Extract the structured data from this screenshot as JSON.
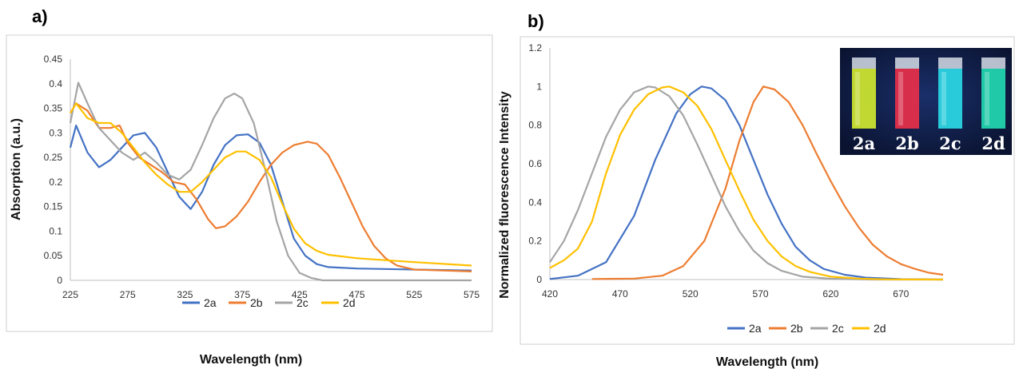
{
  "chart_data": [
    {
      "panel": "a)",
      "type": "line",
      "title": "",
      "xlabel": "Wavelength (nm)",
      "ylabel": "Absorption (a.u.)",
      "xlim": [
        225,
        575
      ],
      "ylim": [
        0,
        0.45
      ],
      "xticks": [
        225,
        275,
        325,
        375,
        425,
        475,
        525,
        575
      ],
      "yticks": [
        0,
        0.05,
        0.1,
        0.15,
        0.2,
        0.25,
        0.3,
        0.35,
        0.4,
        0.45
      ],
      "ytick_labels": [
        "0",
        "0.05",
        "0.1",
        "0.15",
        "0.2",
        "0.25",
        "0.3",
        "0.35",
        "0.4",
        "0.45"
      ],
      "grid": false,
      "legend": "bottom-center",
      "series": [
        {
          "name": "2a",
          "color": "#4472C4",
          "points": [
            [
              225,
              0.27
            ],
            [
              230,
              0.315
            ],
            [
              240,
              0.26
            ],
            [
              250,
              0.23
            ],
            [
              260,
              0.245
            ],
            [
              270,
              0.27
            ],
            [
              280,
              0.295
            ],
            [
              290,
              0.3
            ],
            [
              300,
              0.27
            ],
            [
              310,
              0.22
            ],
            [
              320,
              0.17
            ],
            [
              330,
              0.145
            ],
            [
              340,
              0.18
            ],
            [
              350,
              0.235
            ],
            [
              360,
              0.275
            ],
            [
              370,
              0.295
            ],
            [
              380,
              0.297
            ],
            [
              390,
              0.28
            ],
            [
              400,
              0.235
            ],
            [
              410,
              0.16
            ],
            [
              420,
              0.085
            ],
            [
              430,
              0.05
            ],
            [
              440,
              0.033
            ],
            [
              450,
              0.027
            ],
            [
              475,
              0.024
            ],
            [
              525,
              0.022
            ],
            [
              575,
              0.02
            ]
          ]
        },
        {
          "name": "2b",
          "color": "#ED7D31",
          "points": [
            [
              225,
              0.34
            ],
            [
              230,
              0.36
            ],
            [
              240,
              0.345
            ],
            [
              250,
              0.31
            ],
            [
              260,
              0.31
            ],
            [
              268,
              0.315
            ],
            [
              275,
              0.28
            ],
            [
              285,
              0.25
            ],
            [
              295,
              0.235
            ],
            [
              305,
              0.22
            ],
            [
              315,
              0.2
            ],
            [
              325,
              0.195
            ],
            [
              335,
              0.165
            ],
            [
              345,
              0.125
            ],
            [
              352,
              0.106
            ],
            [
              360,
              0.11
            ],
            [
              370,
              0.13
            ],
            [
              380,
              0.16
            ],
            [
              390,
              0.2
            ],
            [
              400,
              0.235
            ],
            [
              410,
              0.26
            ],
            [
              420,
              0.275
            ],
            [
              432,
              0.282
            ],
            [
              440,
              0.278
            ],
            [
              450,
              0.255
            ],
            [
              460,
              0.21
            ],
            [
              470,
              0.16
            ],
            [
              480,
              0.11
            ],
            [
              490,
              0.07
            ],
            [
              500,
              0.045
            ],
            [
              510,
              0.03
            ],
            [
              525,
              0.022
            ],
            [
              550,
              0.02
            ],
            [
              575,
              0.018
            ]
          ]
        },
        {
          "name": "2c",
          "color": "#A5A5A5",
          "points": [
            [
              225,
              0.32
            ],
            [
              232,
              0.402
            ],
            [
              240,
              0.36
            ],
            [
              250,
              0.31
            ],
            [
              260,
              0.285
            ],
            [
              270,
              0.26
            ],
            [
              280,
              0.245
            ],
            [
              290,
              0.26
            ],
            [
              300,
              0.24
            ],
            [
              310,
              0.215
            ],
            [
              320,
              0.205
            ],
            [
              330,
              0.225
            ],
            [
              340,
              0.275
            ],
            [
              350,
              0.33
            ],
            [
              360,
              0.37
            ],
            [
              368,
              0.38
            ],
            [
              375,
              0.37
            ],
            [
              385,
              0.32
            ],
            [
              395,
              0.225
            ],
            [
              405,
              0.12
            ],
            [
              415,
              0.05
            ],
            [
              425,
              0.015
            ],
            [
              435,
              0.005
            ],
            [
              445,
              0
            ],
            [
              575,
              0
            ]
          ]
        },
        {
          "name": "2d",
          "color": "#FFC000",
          "points": [
            [
              225,
              0.34
            ],
            [
              230,
              0.36
            ],
            [
              240,
              0.33
            ],
            [
              250,
              0.32
            ],
            [
              260,
              0.32
            ],
            [
              270,
              0.3
            ],
            [
              280,
              0.27
            ],
            [
              290,
              0.24
            ],
            [
              300,
              0.215
            ],
            [
              310,
              0.195
            ],
            [
              320,
              0.18
            ],
            [
              330,
              0.18
            ],
            [
              340,
              0.2
            ],
            [
              350,
              0.225
            ],
            [
              360,
              0.25
            ],
            [
              370,
              0.262
            ],
            [
              378,
              0.262
            ],
            [
              390,
              0.245
            ],
            [
              400,
              0.21
            ],
            [
              410,
              0.155
            ],
            [
              420,
              0.105
            ],
            [
              430,
              0.075
            ],
            [
              440,
              0.06
            ],
            [
              450,
              0.052
            ],
            [
              475,
              0.045
            ],
            [
              525,
              0.037
            ],
            [
              575,
              0.03
            ]
          ]
        }
      ]
    },
    {
      "panel": "b)",
      "type": "line",
      "title": "",
      "xlabel": "Wavelength (nm)",
      "ylabel": "Normalized fluorescence Intensity",
      "xlim": [
        420,
        700
      ],
      "ylim": [
        0,
        1.2
      ],
      "xticks": [
        420,
        470,
        520,
        570,
        620,
        670
      ],
      "yticks": [
        0,
        0.2,
        0.4,
        0.6,
        0.8,
        1,
        1.2
      ],
      "ytick_labels": [
        "0",
        "0.2",
        "0.4",
        "0.6",
        "0.8",
        "1",
        "1.2"
      ],
      "grid": false,
      "legend": "bottom-right",
      "series": [
        {
          "name": "2a",
          "color": "#4472C4",
          "points": [
            [
              420,
              0.003
            ],
            [
              440,
              0.02
            ],
            [
              460,
              0.09
            ],
            [
              480,
              0.33
            ],
            [
              495,
              0.62
            ],
            [
              510,
              0.86
            ],
            [
              520,
              0.96
            ],
            [
              528,
              1.0
            ],
            [
              535,
              0.99
            ],
            [
              545,
              0.93
            ],
            [
              555,
              0.8
            ],
            [
              565,
              0.62
            ],
            [
              575,
              0.44
            ],
            [
              585,
              0.29
            ],
            [
              595,
              0.17
            ],
            [
              605,
              0.1
            ],
            [
              615,
              0.055
            ],
            [
              630,
              0.025
            ],
            [
              645,
              0.01
            ],
            [
              670,
              0.002
            ],
            [
              700,
              0
            ]
          ]
        },
        {
          "name": "2b",
          "color": "#ED7D31",
          "points": [
            [
              450,
              0.003
            ],
            [
              480,
              0.005
            ],
            [
              500,
              0.02
            ],
            [
              515,
              0.07
            ],
            [
              530,
              0.2
            ],
            [
              545,
              0.47
            ],
            [
              555,
              0.72
            ],
            [
              565,
              0.92
            ],
            [
              572,
              1.0
            ],
            [
              580,
              0.985
            ],
            [
              590,
              0.92
            ],
            [
              600,
              0.8
            ],
            [
              610,
              0.65
            ],
            [
              620,
              0.51
            ],
            [
              630,
              0.38
            ],
            [
              640,
              0.27
            ],
            [
              650,
              0.18
            ],
            [
              660,
              0.12
            ],
            [
              670,
              0.08
            ],
            [
              680,
              0.055
            ],
            [
              690,
              0.035
            ],
            [
              700,
              0.025
            ]
          ]
        },
        {
          "name": "2c",
          "color": "#A5A5A5",
          "points": [
            [
              420,
              0.09
            ],
            [
              430,
              0.2
            ],
            [
              440,
              0.36
            ],
            [
              450,
              0.55
            ],
            [
              460,
              0.74
            ],
            [
              470,
              0.88
            ],
            [
              480,
              0.97
            ],
            [
              490,
              1.0
            ],
            [
              495,
              0.995
            ],
            [
              505,
              0.95
            ],
            [
              515,
              0.85
            ],
            [
              525,
              0.7
            ],
            [
              535,
              0.54
            ],
            [
              545,
              0.38
            ],
            [
              555,
              0.25
            ],
            [
              565,
              0.15
            ],
            [
              575,
              0.085
            ],
            [
              585,
              0.045
            ],
            [
              600,
              0.015
            ],
            [
              620,
              0.004
            ],
            [
              650,
              0
            ],
            [
              700,
              0
            ]
          ]
        },
        {
          "name": "2d",
          "color": "#FFC000",
          "points": [
            [
              420,
              0.06
            ],
            [
              430,
              0.1
            ],
            [
              440,
              0.16
            ],
            [
              450,
              0.3
            ],
            [
              460,
              0.55
            ],
            [
              470,
              0.75
            ],
            [
              480,
              0.88
            ],
            [
              490,
              0.96
            ],
            [
              500,
              0.995
            ],
            [
              505,
              1.0
            ],
            [
              515,
              0.97
            ],
            [
              525,
              0.9
            ],
            [
              535,
              0.78
            ],
            [
              545,
              0.62
            ],
            [
              555,
              0.46
            ],
            [
              565,
              0.31
            ],
            [
              575,
              0.2
            ],
            [
              585,
              0.12
            ],
            [
              595,
              0.07
            ],
            [
              605,
              0.04
            ],
            [
              620,
              0.015
            ],
            [
              640,
              0.005
            ],
            [
              660,
              0.001
            ],
            [
              700,
              0
            ]
          ]
        }
      ]
    }
  ],
  "inset": {
    "labels": [
      "2a",
      "2b",
      "2c",
      "2d"
    ],
    "colors": [
      "#cfe830",
      "#e8304a",
      "#2bd9e6",
      "#22d8b0"
    ]
  }
}
